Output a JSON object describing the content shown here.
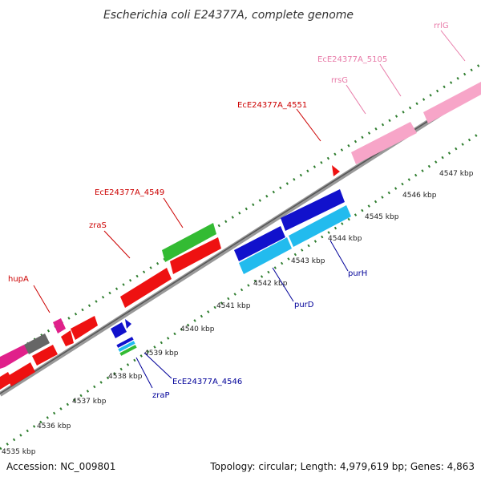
{
  "title": "Escherichia coli E24377A, complete genome",
  "footer": {
    "accession": "Accession: NC_009801",
    "summary": "Topology: circular; Length: 4,979,619 bp; Genes: 4,863"
  },
  "colors": {
    "backbone": "#888888",
    "dots": "#2e7d2e",
    "red": "#ee1111",
    "blue": "#1111cc",
    "cyan": "#22bbee",
    "green": "#33bb33",
    "pink": "#f7a5c8",
    "magenta": "#e0208a",
    "gray": "#666666",
    "label_red": "#cc0000",
    "label_blue": "#000099",
    "label_pink": "#e87aa8"
  },
  "ticks": [
    {
      "label": "4535 kbp",
      "value": 4535
    },
    {
      "label": "4536 kbp",
      "value": 4536
    },
    {
      "label": "4537 kbp",
      "value": 4537
    },
    {
      "label": "4538 kbp",
      "value": 4538
    },
    {
      "label": "4539 kbp",
      "value": 4539
    },
    {
      "label": "4540 kbp",
      "value": 4540
    },
    {
      "label": "4541 kbp",
      "value": 4541
    },
    {
      "label": "4542 kbp",
      "value": 4542
    },
    {
      "label": "4543 kbp",
      "value": 4543
    },
    {
      "label": "4544 kbp",
      "value": 4544
    },
    {
      "label": "4545 kbp",
      "value": 4545
    },
    {
      "label": "4546 kbp",
      "value": 4546
    },
    {
      "label": "4547 kbp",
      "value": 4547
    }
  ],
  "gene_labels": [
    {
      "name": "hupA",
      "color": "label_red"
    },
    {
      "name": "zraS",
      "color": "label_red"
    },
    {
      "name": "EcE24377A_4549",
      "color": "label_red"
    },
    {
      "name": "EcE24377A_4551",
      "color": "label_red"
    },
    {
      "name": "rrsG",
      "color": "label_pink"
    },
    {
      "name": "EcE24377A_5105",
      "color": "label_pink"
    },
    {
      "name": "rrlG",
      "color": "label_pink"
    },
    {
      "name": "zraP",
      "color": "label_blue"
    },
    {
      "name": "EcE24377A_4546",
      "color": "label_blue"
    },
    {
      "name": "purD",
      "color": "label_blue"
    },
    {
      "name": "purH",
      "color": "label_blue"
    }
  ]
}
